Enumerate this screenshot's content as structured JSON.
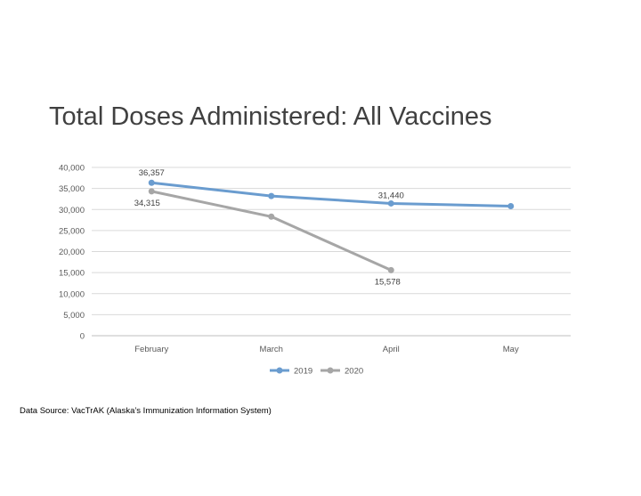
{
  "slide": {
    "title": "Total Doses Administered:  All Vaccines",
    "source": "Data Source:  VacTrAK (Alaska’s Immunization Information System)"
  },
  "chart_data": {
    "type": "line",
    "title": "",
    "xlabel": "",
    "ylabel": "",
    "categories": [
      "February",
      "March",
      "April",
      "May"
    ],
    "ylim": [
      0,
      40000
    ],
    "yticks": [
      0,
      5000,
      10000,
      15000,
      20000,
      25000,
      30000,
      35000,
      40000
    ],
    "ytick_labels": [
      "0",
      "5,000",
      "10,000",
      "15,000",
      "20,000",
      "25,000",
      "30,000",
      "35,000",
      "40,000"
    ],
    "grid": true,
    "legend_position": "bottom",
    "series": [
      {
        "name": "2019",
        "color": "#6a9ccf",
        "values": [
          36357,
          33200,
          31440,
          30800
        ],
        "labels": [
          "36,357",
          "",
          "31,440",
          ""
        ]
      },
      {
        "name": "2020",
        "color": "#a6a6a6",
        "values": [
          34315,
          28300,
          15578,
          null
        ],
        "labels": [
          "34,315",
          "",
          "15,578",
          ""
        ]
      }
    ]
  }
}
